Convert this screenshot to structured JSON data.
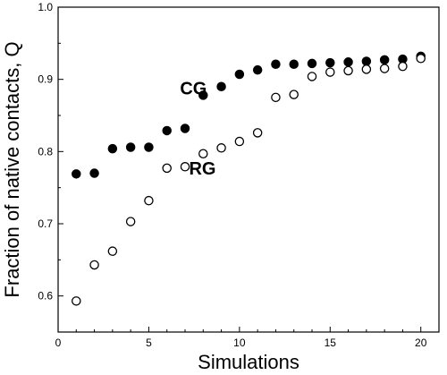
{
  "chart_data": {
    "type": "scatter",
    "title": "",
    "xlabel": "Simulations",
    "ylabel": "Fraction of native contacts, Q",
    "xlim": [
      0,
      21
    ],
    "ylim": [
      0.55,
      1.0
    ],
    "xticks": [
      0,
      5,
      10,
      15,
      20
    ],
    "yticks": [
      0.6,
      0.7,
      0.8,
      0.9,
      1.0
    ],
    "xtick_labels": [
      "0",
      "5",
      "10",
      "15",
      "20"
    ],
    "ytick_labels": [
      "0.6",
      "0.7",
      "0.8",
      "0.9",
      "1.0"
    ],
    "grid": false,
    "legend": "none",
    "series": [
      {
        "name": "CG",
        "marker": "filled-circle",
        "color": "#000000",
        "x": [
          1,
          2,
          3,
          4,
          5,
          6,
          7,
          8,
          9,
          10,
          11,
          12,
          13,
          14,
          15,
          16,
          17,
          18,
          19,
          20
        ],
        "y": [
          0.769,
          0.77,
          0.804,
          0.806,
          0.806,
          0.829,
          0.832,
          0.878,
          0.89,
          0.907,
          0.913,
          0.921,
          0.921,
          0.922,
          0.923,
          0.924,
          0.925,
          0.927,
          0.928,
          0.932
        ]
      },
      {
        "name": "RG",
        "marker": "open-circle",
        "color": "#000000",
        "x": [
          1,
          2,
          3,
          4,
          5,
          6,
          7,
          8,
          9,
          10,
          11,
          12,
          13,
          14,
          15,
          16,
          17,
          18,
          19,
          20
        ],
        "y": [
          0.593,
          0.643,
          0.662,
          0.703,
          0.732,
          0.777,
          0.779,
          0.797,
          0.805,
          0.814,
          0.826,
          0.875,
          0.879,
          0.904,
          0.91,
          0.912,
          0.914,
          0.915,
          0.918,
          0.929
        ]
      }
    ],
    "annotations": [
      {
        "text": "CG",
        "x": 8.2,
        "y": 0.879
      },
      {
        "text": "RG",
        "x": 8.7,
        "y": 0.768
      }
    ]
  }
}
